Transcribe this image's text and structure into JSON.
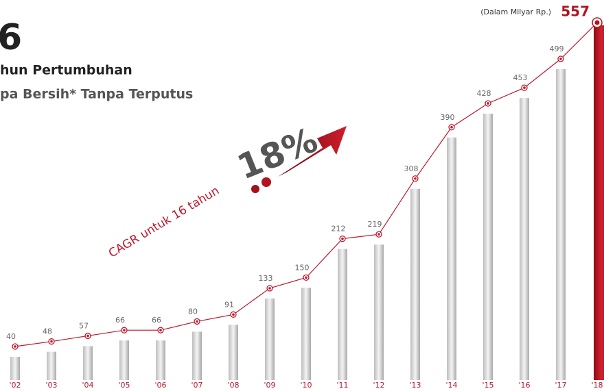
{
  "chart_data": {
    "type": "bar-line",
    "title": "6",
    "subtitle_1": "hun Pertumbuhan",
    "subtitle_2": "pa Bersih* Tanpa Terputus",
    "unit_note": "(Dalam Milyar Rp.)",
    "annotation_text": "CAGR untuk 16 tahun",
    "annotation_value": "18%",
    "categories": [
      "'02",
      "'03",
      "'04",
      "'05",
      "'06",
      "'07",
      "'08",
      "'09",
      "'10",
      "'11",
      "'12",
      "'13",
      "'14",
      "'15",
      "'16",
      "'17",
      "'18"
    ],
    "values": [
      40,
      48,
      57,
      66,
      66,
      80,
      91,
      133,
      150,
      212,
      219,
      308,
      390,
      428,
      453,
      499,
      557
    ],
    "color": "#c0172b",
    "bar_color": "#d4d4d4",
    "highlight_color": "#b3121f"
  }
}
